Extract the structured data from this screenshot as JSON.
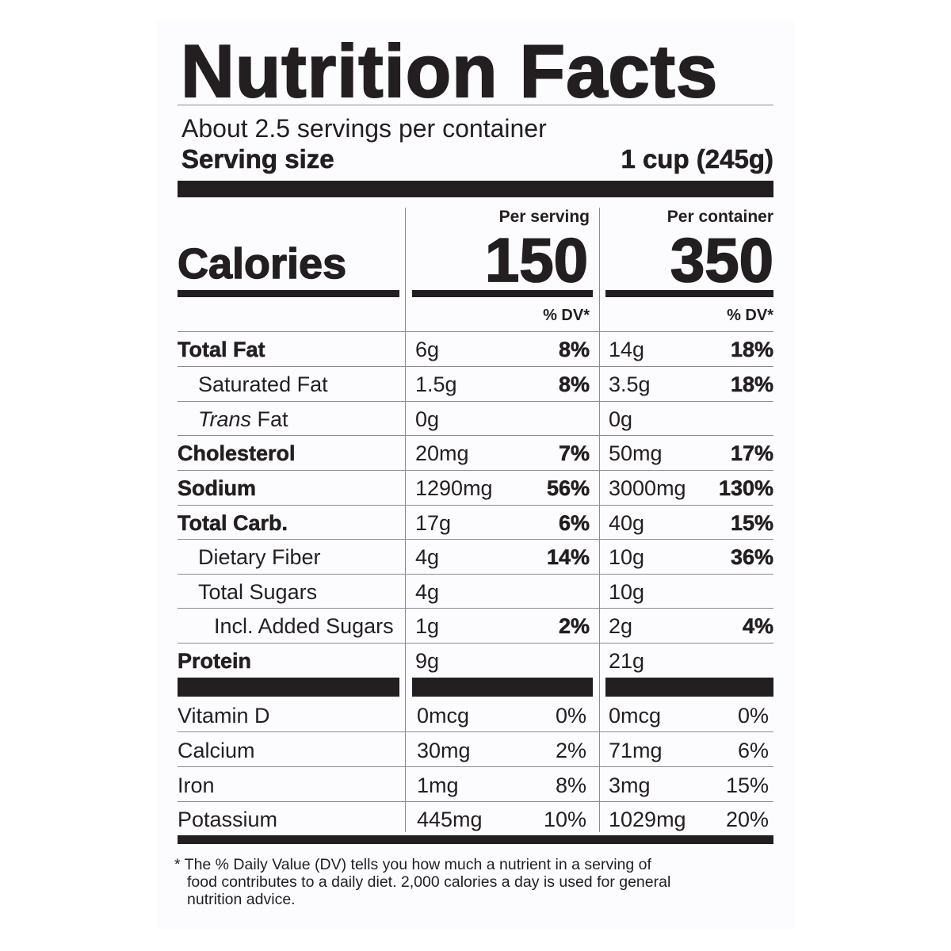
{
  "title": "Nutrition Facts",
  "servings_per_container": "About 2.5 servings per container",
  "serving_size_label": "Serving size",
  "serving_size_value": "1 cup (245g)",
  "columns": {
    "per_serving": "Per serving",
    "per_container": "Per container",
    "dv_label": "% DV*"
  },
  "calories": {
    "label": "Calories",
    "per_serving": "150",
    "per_container": "350"
  },
  "nutrients": [
    {
      "name": "Total Fat",
      "serving_amount": "6g",
      "serving_dv": "8%",
      "container_amount": "14g",
      "container_dv": "18%"
    },
    {
      "name": "Saturated Fat",
      "serving_amount": "1.5g",
      "serving_dv": "8%",
      "container_amount": "3.5g",
      "container_dv": "18%"
    },
    {
      "name_italic": "Trans",
      "name_rest": " Fat",
      "serving_amount": "0g",
      "serving_dv": "",
      "container_amount": "0g",
      "container_dv": ""
    },
    {
      "name": "Cholesterol",
      "serving_amount": "20mg",
      "serving_dv": "7%",
      "container_amount": "50mg",
      "container_dv": "17%"
    },
    {
      "name": "Sodium",
      "serving_amount": "1290mg",
      "serving_dv": "56%",
      "container_amount": "3000mg",
      "container_dv": "130%"
    },
    {
      "name": "Total Carb.",
      "serving_amount": "17g",
      "serving_dv": "6%",
      "container_amount": "40g",
      "container_dv": "15%"
    },
    {
      "name": "Dietary Fiber",
      "serving_amount": "4g",
      "serving_dv": "14%",
      "container_amount": "10g",
      "container_dv": "36%"
    },
    {
      "name": "Total Sugars",
      "serving_amount": "4g",
      "serving_dv": "",
      "container_amount": "10g",
      "container_dv": ""
    },
    {
      "name": "Incl. Added Sugars",
      "serving_amount": "1g",
      "serving_dv": "2%",
      "container_amount": "2g",
      "container_dv": "4%"
    },
    {
      "name": "Protein",
      "serving_amount": "9g",
      "serving_dv": "",
      "container_amount": "21g",
      "container_dv": ""
    }
  ],
  "vitamins": [
    {
      "name": "Vitamin D",
      "serving_amount": "0mcg",
      "serving_dv": "0%",
      "container_amount": "0mcg",
      "container_dv": "0%"
    },
    {
      "name": "Calcium",
      "serving_amount": "30mg",
      "serving_dv": "2%",
      "container_amount": "71mg",
      "container_dv": "6%"
    },
    {
      "name": "Iron",
      "serving_amount": "1mg",
      "serving_dv": "8%",
      "container_amount": "3mg",
      "container_dv": "15%"
    },
    {
      "name": "Potassium",
      "serving_amount": "445mg",
      "serving_dv": "10%",
      "container_amount": "1029mg",
      "container_dv": "20%"
    }
  ],
  "footnote": [
    "* The % Daily Value (DV) tells you how much a nutrient in a serving of",
    "food contributes to a daily diet. 2,000 calories a day is used for general",
    "nutrition advice."
  ]
}
